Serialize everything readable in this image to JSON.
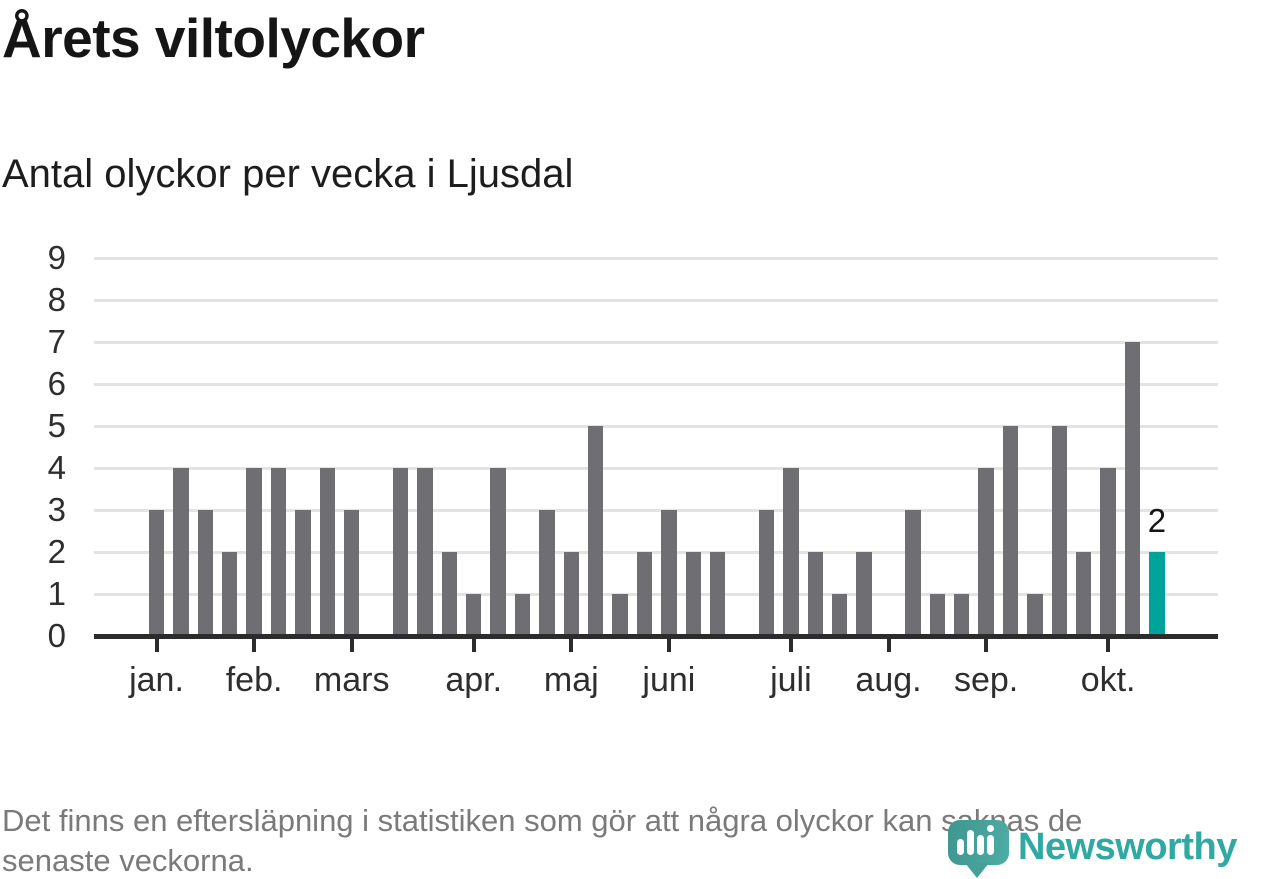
{
  "header": {
    "title": "Årets viltolyckor",
    "subtitle": "Antal olyckor per vecka i Ljusdal"
  },
  "chart_data": {
    "type": "bar",
    "title": "Årets viltolyckor",
    "subtitle": "Antal olyckor per vecka i Ljusdal",
    "xlabel": "",
    "ylabel": "",
    "x_unit": "week",
    "ylim": [
      0,
      9
    ],
    "yticks": [
      0,
      1,
      2,
      3,
      4,
      5,
      6,
      7,
      8,
      9
    ],
    "grid": true,
    "legend": false,
    "values": [
      3,
      4,
      3,
      2,
      4,
      4,
      3,
      4,
      3,
      0,
      4,
      4,
      2,
      1,
      4,
      1,
      3,
      2,
      5,
      1,
      2,
      3,
      2,
      2,
      0,
      3,
      4,
      2,
      1,
      2,
      0,
      3,
      1,
      1,
      4,
      5,
      1,
      5,
      2,
      4,
      7,
      2
    ],
    "month_ticks": [
      {
        "label": "jan.",
        "week_index": 0
      },
      {
        "label": "feb.",
        "week_index": 4
      },
      {
        "label": "mars",
        "week_index": 8
      },
      {
        "label": "apr.",
        "week_index": 13
      },
      {
        "label": "maj",
        "week_index": 17
      },
      {
        "label": "juni",
        "week_index": 21
      },
      {
        "label": "juli",
        "week_index": 26
      },
      {
        "label": "aug.",
        "week_index": 30
      },
      {
        "label": "sep.",
        "week_index": 34
      },
      {
        "label": "okt.",
        "week_index": 39
      }
    ],
    "last_bar": {
      "value": 2,
      "label": "2",
      "highlighted": true
    },
    "colors": {
      "bar": "#6e6e73",
      "highlight": "#00a39a",
      "gridline": "#e3e3e3",
      "axis": "#2c2c2c"
    }
  },
  "footer": {
    "note_line1": "Det finns en eftersläpning i statistiken som gör att några olyckor kan saknas de",
    "note_line2": "senaste veckorna.",
    "brand": "Newsworthy",
    "brand_color": "#2fa9a2"
  }
}
